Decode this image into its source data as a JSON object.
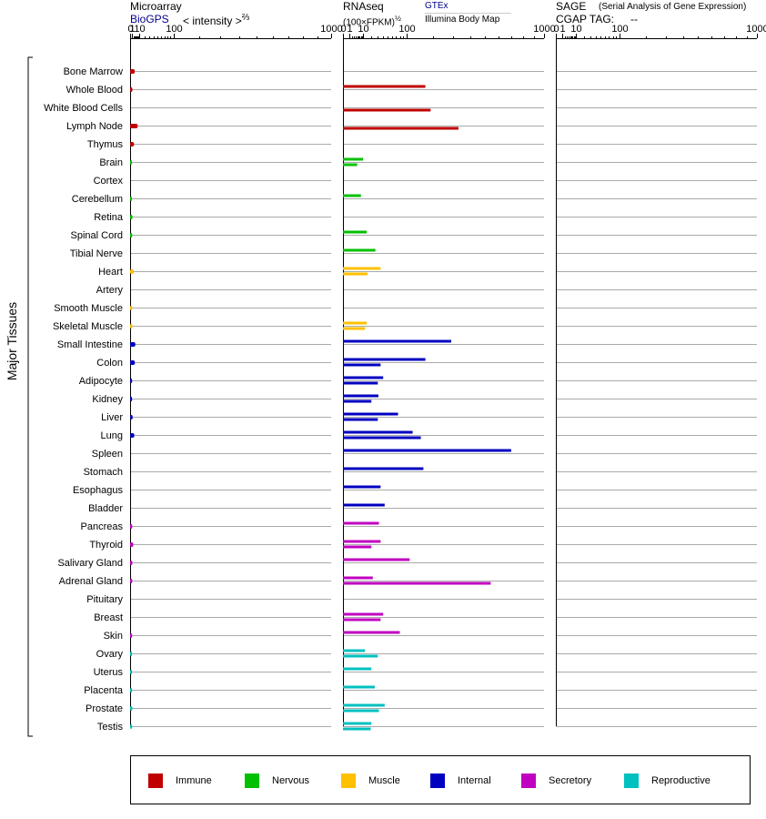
{
  "headers": {
    "microarray_title": "Microarray",
    "microarray_source": "BioGPS",
    "microarray_unit": "< intensity >",
    "microarray_exp": "⅔",
    "rnaseq_title": "RNAseq",
    "rnaseq_unit": "(100×FPKM)",
    "rnaseq_exp": "½",
    "rnaseq_gtex": "GTEx",
    "rnaseq_ibm": "Illumina Body Map",
    "sage_title": "SAGE",
    "sage_subtitle": "(Serial Analysis of Gene Expression)",
    "cgap_label": "CGAP TAG:",
    "cgap_value": "--"
  },
  "y_axis_label": "Major Tissues",
  "legend": [
    {
      "name": "Immune",
      "color": "#c00000"
    },
    {
      "name": "Nervous",
      "color": "#00c000"
    },
    {
      "name": "Muscle",
      "color": "#ffc000"
    },
    {
      "name": "Internal",
      "color": "#0000c0"
    },
    {
      "name": "Secretory",
      "color": "#c000c0"
    },
    {
      "name": "Reproductive",
      "color": "#00c0c0"
    }
  ],
  "chart_data": [
    {
      "type": "bar",
      "title": "Microarray",
      "xscale": "power-2/3",
      "xlim": [
        0,
        1000
      ],
      "xticks": [
        "0",
        "1",
        "10",
        "100",
        "1000"
      ],
      "categories": [
        "Bone Marrow",
        "Whole Blood",
        "White Blood Cells",
        "Lymph Node",
        "Thymus",
        "Brain",
        "Cortex",
        "Cerebellum",
        "Retina",
        "Spinal Cord",
        "Tibial Nerve",
        "Heart",
        "Artery",
        "Smooth Muscle",
        "Skeletal Muscle",
        "Small Intestine",
        "Colon",
        "Adipocyte",
        "Kidney",
        "Liver",
        "Lung",
        "Spleen",
        "Stomach",
        "Esophagus",
        "Bladder",
        "Pancreas",
        "Thyroid",
        "Salivary Gland",
        "Adrenal Gland",
        "Pituitary",
        "Breast",
        "Skin",
        "Ovary",
        "Uterus",
        "Placenta",
        "Prostate",
        "Testis"
      ],
      "groups": [
        "Immune",
        "Immune",
        "Immune",
        "Immune",
        "Immune",
        "Nervous",
        "Nervous",
        "Nervous",
        "Nervous",
        "Nervous",
        "Nervous",
        "Muscle",
        "Muscle",
        "Muscle",
        "Muscle",
        "Internal",
        "Internal",
        "Internal",
        "Internal",
        "Internal",
        "Internal",
        "Internal",
        "Internal",
        "Internal",
        "Internal",
        "Secretory",
        "Secretory",
        "Secretory",
        "Secretory",
        "Secretory",
        "Secretory",
        "Secretory",
        "Reproductive",
        "Reproductive",
        "Reproductive",
        "Reproductive",
        "Reproductive"
      ],
      "values": [
        3.5,
        1.2,
        null,
        7.3,
        2.7,
        0.9,
        null,
        0.9,
        1.3,
        1.1,
        null,
        2.5,
        null,
        1.1,
        1.2,
        4.2,
        3.6,
        1.0,
        1.0,
        1.4,
        3.0,
        null,
        null,
        null,
        null,
        1.1,
        2.0,
        1.2,
        1.1,
        null,
        null,
        1.0,
        1.0,
        1.0,
        1.0,
        1.2,
        1.0
      ]
    },
    {
      "type": "bar",
      "title": "RNAseq",
      "xscale": "power-1/2",
      "xlim": [
        0,
        1000
      ],
      "xticks": [
        "0",
        "1",
        "10",
        "100",
        "1000"
      ],
      "series": [
        {
          "name": "GTEx",
          "values": [
            null,
            168,
            null,
            null,
            null,
            10,
            null,
            8,
            null,
            14,
            26,
            35,
            null,
            null,
            14,
            290,
            168,
            40,
            31,
            75,
            120,
            700,
            160,
            35,
            43,
            32,
            35,
            110,
            22,
            null,
            40,
            80,
            12,
            20,
            25,
            43,
            20
          ]
        },
        {
          "name": "Illumina Body Map",
          "values": [
            null,
            null,
            190,
            330,
            null,
            5,
            null,
            null,
            null,
            null,
            null,
            15,
            null,
            null,
            12,
            null,
            35,
            30,
            20,
            30,
            150,
            null,
            null,
            null,
            null,
            null,
            20,
            null,
            540,
            null,
            35,
            null,
            30,
            null,
            null,
            32,
            19
          ]
        }
      ]
    },
    {
      "type": "bar",
      "title": "SAGE",
      "xscale": "power-1/2",
      "xlim": [
        0,
        1000
      ],
      "xticks": [
        "0",
        "1",
        "10",
        "100",
        "1000"
      ],
      "values": []
    }
  ]
}
